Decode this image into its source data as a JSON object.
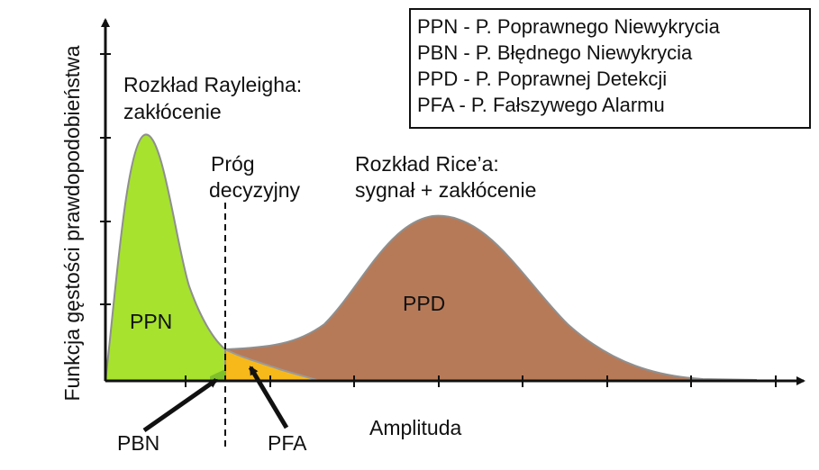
{
  "diagram": {
    "y_axis_label": "Funkcja gęstości prawdopodobieństwa",
    "x_axis_label": "Amplituda",
    "noise_label_line1": "Rozkład Rayleigha:",
    "noise_label_line2": "zakłócenie",
    "signal_label_line1": "Rozkład Rice’a:",
    "signal_label_line2": "sygnał + zakłócenie",
    "threshold_label_line1": "Próg",
    "threshold_label_line2": "decyzyjny",
    "region_ppn": "PPN",
    "region_ppd": "PPD",
    "pointer_pbn": "PBN",
    "pointer_pfa": "PFA"
  },
  "legend": {
    "items": [
      "PPN - P. Poprawnego Niewykrycia",
      "PBN - P. Błędnego Niewykrycia",
      "PPD - P. Poprawnej Detekcji",
      "PFA - P. Fałszywego Alarmu"
    ]
  },
  "colors": {
    "ppn": "#a6e22e",
    "pfa": "#f7b81a",
    "ppd": "#b77a58",
    "pbn": "#7fbf2a",
    "axis": "#111111",
    "curve_edge": "#8f8f8f"
  }
}
